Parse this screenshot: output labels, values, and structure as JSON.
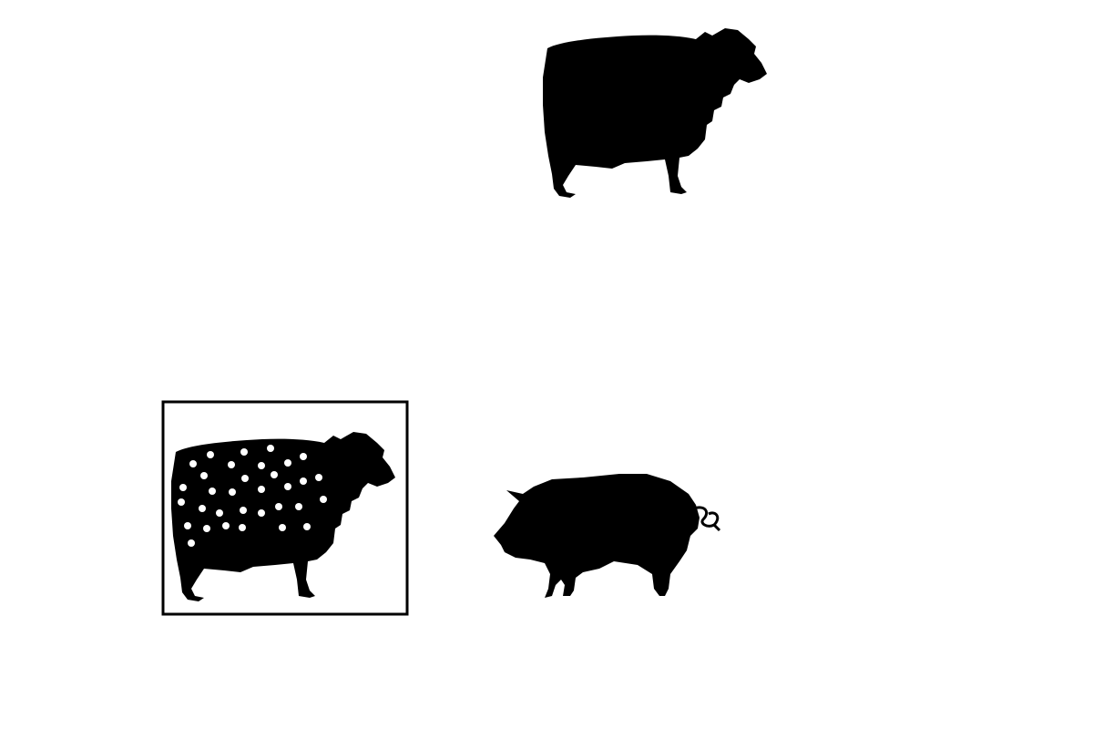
{
  "scene": {
    "background": "#ffffff",
    "silhouette_color": "#000000",
    "spot_color": "#ffffff",
    "items": [
      {
        "role": "top",
        "animal": "sheep",
        "icon": "sheep-icon",
        "pattern": "solid",
        "selected": false
      },
      {
        "role": "choice-left",
        "animal": "sheep",
        "icon": "sheep-icon",
        "pattern": "white-dots",
        "selected": true
      },
      {
        "role": "choice-right",
        "animal": "pig",
        "icon": "pig-icon",
        "pattern": "solid",
        "selected": false
      }
    ]
  }
}
